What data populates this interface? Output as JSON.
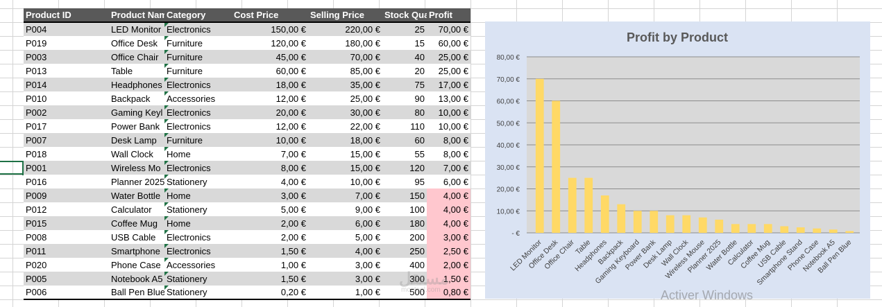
{
  "table": {
    "headers": [
      "Product ID",
      "Product Nam",
      "Category",
      "Cost Price",
      "Selling Price",
      "Stock Qua",
      "Profit"
    ],
    "rows": [
      [
        "P004",
        "LED Monitor",
        "Electronics",
        "150,00 €",
        "220,00 €",
        "25",
        "70,00 €"
      ],
      [
        "P019",
        "Office Desk",
        "Furniture",
        "120,00 €",
        "180,00 €",
        "15",
        "60,00 €"
      ],
      [
        "P003",
        "Office Chair",
        "Furniture",
        "45,00 €",
        "70,00 €",
        "40",
        "25,00 €"
      ],
      [
        "P013",
        "Table",
        "Furniture",
        "60,00 €",
        "85,00 €",
        "20",
        "25,00 €"
      ],
      [
        "P014",
        "Headphones",
        "Electronics",
        "18,00 €",
        "35,00 €",
        "75",
        "17,00 €"
      ],
      [
        "P010",
        "Backpack",
        "Accessories",
        "12,00 €",
        "25,00 €",
        "90",
        "13,00 €"
      ],
      [
        "P002",
        "Gaming Keyl",
        "Electronics",
        "20,00 €",
        "30,00 €",
        "80",
        "10,00 €"
      ],
      [
        "P017",
        "Power Bank",
        "Electronics",
        "12,00 €",
        "22,00 €",
        "110",
        "10,00 €"
      ],
      [
        "P007",
        "Desk Lamp",
        "Furniture",
        "10,00 €",
        "18,00 €",
        "60",
        "8,00 €"
      ],
      [
        "P018",
        "Wall Clock",
        "Home",
        "7,00 €",
        "15,00 €",
        "55",
        "8,00 €"
      ],
      [
        "P001",
        "Wireless Mo",
        "Electronics",
        "8,00 €",
        "15,00 €",
        "120",
        "7,00 €"
      ],
      [
        "P016",
        "Planner 2025",
        "Stationery",
        "4,00 €",
        "10,00 €",
        "95",
        "6,00 €"
      ],
      [
        "P009",
        "Water Bottle",
        "Home",
        "3,00 €",
        "7,00 €",
        "150",
        "4,00 €"
      ],
      [
        "P012",
        "Calculator",
        "Stationery",
        "5,00 €",
        "9,00 €",
        "100",
        "4,00 €"
      ],
      [
        "P015",
        "Coffee Mug",
        "Home",
        "2,00 €",
        "6,00 €",
        "180",
        "4,00 €"
      ],
      [
        "P008",
        "USB Cable",
        "Electronics",
        "2,00 €",
        "5,00 €",
        "200",
        "3,00 €"
      ],
      [
        "P011",
        "Smartphone",
        "Electronics",
        "1,50 €",
        "4,00 €",
        "250",
        "2,50 €"
      ],
      [
        "P020",
        "Phone Case",
        "Accessories",
        "1,00 €",
        "3,00 €",
        "400",
        "2,00 €"
      ],
      [
        "P005",
        "Notebook A5",
        "Stationery",
        "1,50 €",
        "3,00 €",
        "300",
        "1,50 €"
      ],
      [
        "P006",
        "Ball Pen Blue",
        "Stationery",
        "0,20 €",
        "1,00 €",
        "500",
        "0,80 €"
      ]
    ],
    "highlight_threshold": 5,
    "highlight_color": "#ffc7ce",
    "header_color": "#595959",
    "band_color": "#d9d9d9"
  },
  "chart_data": {
    "type": "bar",
    "title": "Profit by Product",
    "xlabel": "",
    "ylabel": "",
    "categories": [
      "LED Monitor",
      "Office Desk",
      "Office Chair",
      "Table",
      "Headphones",
      "Backpack",
      "Gaming Keyboard",
      "Power Bank",
      "Desk Lamp",
      "Wall Clock",
      "Wireless Mouse",
      "Planner 2025",
      "Water Bottle",
      "Calculator",
      "Coffee Mug",
      "USB Cable",
      "Smartphone Stand",
      "Phone Case",
      "Notebook A5",
      "Ball Pen Blue"
    ],
    "values": [
      70,
      60,
      25,
      25,
      17,
      13,
      10,
      10,
      8,
      8,
      7,
      6,
      4,
      4,
      4,
      3,
      2.5,
      2,
      1.5,
      0.8
    ],
    "ylim": [
      0,
      80
    ],
    "yticks": [
      0,
      10,
      20,
      30,
      40,
      50,
      60,
      70,
      80
    ],
    "ytick_labels": [
      "-   €",
      "10,00 €",
      "20,00 €",
      "30,00 €",
      "40,00 €",
      "50,00 €",
      "60,00 €",
      "70,00 €",
      "80,00 €"
    ],
    "grid": true,
    "legend": "none",
    "bar_color": "#ffd966",
    "plot_bg": "#d9d9d9",
    "chart_bg": "#dae3f3"
  },
  "watermark": {
    "logo": "مستقل",
    "sub": "mostaql.com"
  },
  "os_notice": "Activer Windows"
}
